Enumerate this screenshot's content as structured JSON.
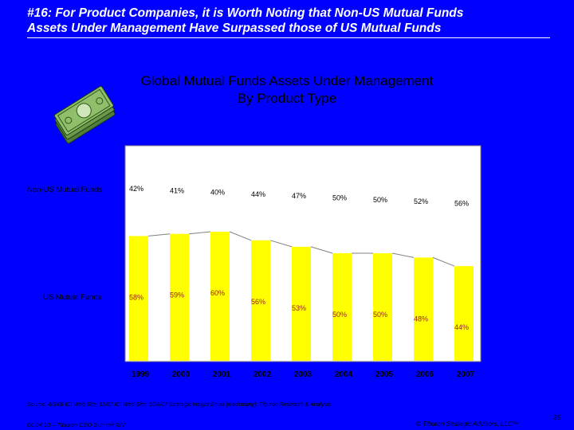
{
  "slide": {
    "headline_line1": "#16: For Product Companies, it is Worth Noting that Non-US Mutual Funds",
    "headline_line2": "Assets Under Management Have Surpassed those of US Mutual Funds",
    "icon": "money-stack-icon",
    "source": "Source:  4/3/08 ICI Web Site; 11/07 ICI Web Site; 5/28/07 Strategic Insight Email (Kachmany); Tiburon Research & Analysis",
    "footer_left": "06.04.10 – Tiburon CEO Summit XIV",
    "footer_right": "© Tiburon Strategic Advisors, LLC™",
    "page_number": "36"
  },
  "colors": {
    "background": "#0000ff",
    "bar_us": "#ffff00",
    "bar_non_us": "#ffffff",
    "label_us": "#9b1c1c",
    "label_non_us": "#000000"
  },
  "chart_data": {
    "type": "bar",
    "stacked": true,
    "title": "Global Mutual Funds Assets Under Management",
    "subtitle": "By Product Type",
    "categories": [
      "1999",
      "2000",
      "2001",
      "2002",
      "2003",
      "2004",
      "2005",
      "2006",
      "2007"
    ],
    "series": [
      {
        "name": "US Mutual Funds",
        "values": [
          58,
          59,
          60,
          56,
          53,
          50,
          50,
          48,
          44
        ],
        "labels": [
          "58%",
          "59%",
          "60%",
          "56%",
          "53%",
          "50%",
          "50%",
          "48%",
          "44%"
        ]
      },
      {
        "name": "Non-US Mutual Funds",
        "values": [
          42,
          41,
          40,
          44,
          47,
          50,
          50,
          52,
          56
        ],
        "labels": [
          "42%",
          "41%",
          "40%",
          "44%",
          "47%",
          "50%",
          "50%",
          "52%",
          "56%"
        ]
      }
    ],
    "ylim": [
      0,
      100
    ],
    "xlabel": "",
    "ylabel": "",
    "grid": false,
    "legend": "left"
  }
}
